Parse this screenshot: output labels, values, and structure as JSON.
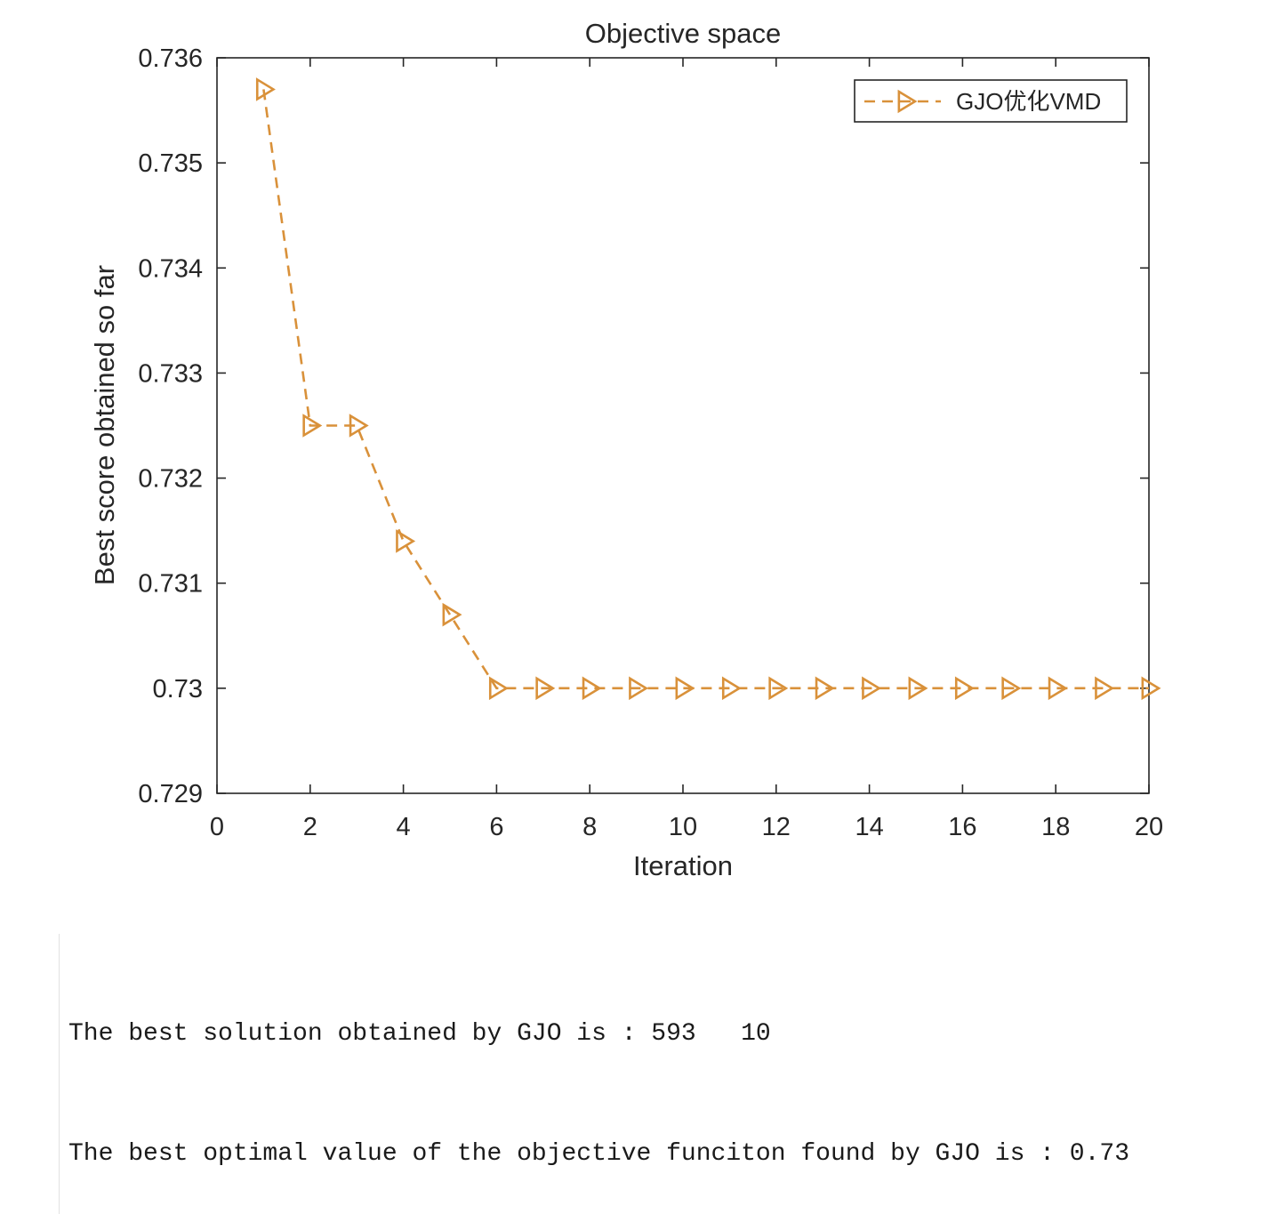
{
  "chart_data": {
    "type": "line",
    "title": "Objective space",
    "xlabel": "Iteration",
    "ylabel": "Best score obtained so far",
    "xlim": [
      0,
      20
    ],
    "ylim": [
      0.729,
      0.736
    ],
    "x_ticks": [
      "0",
      "2",
      "4",
      "6",
      "8",
      "10",
      "12",
      "14",
      "16",
      "18",
      "20"
    ],
    "y_ticks": [
      "0.729",
      "0.73",
      "0.731",
      "0.732",
      "0.733",
      "0.734",
      "0.735",
      "0.736"
    ],
    "legend_position": "top-right",
    "series": [
      {
        "name": "GJO优化VMD",
        "color": "#d9913a",
        "line_style": "dashed",
        "marker": "triangle-right",
        "x": [
          1,
          2,
          3,
          4,
          5,
          6,
          7,
          8,
          9,
          10,
          11,
          12,
          13,
          14,
          15,
          16,
          17,
          18,
          19,
          20
        ],
        "values": [
          0.7357,
          0.7325,
          0.7325,
          0.7314,
          0.7307,
          0.73,
          0.73,
          0.73,
          0.73,
          0.73,
          0.73,
          0.73,
          0.73,
          0.73,
          0.73,
          0.73,
          0.73,
          0.73,
          0.73,
          0.73
        ]
      }
    ]
  },
  "console": {
    "line1": "The best solution obtained by GJO is : 593   10",
    "line2": "The best optimal value of the objective funciton found by GJO is : 0.73"
  }
}
